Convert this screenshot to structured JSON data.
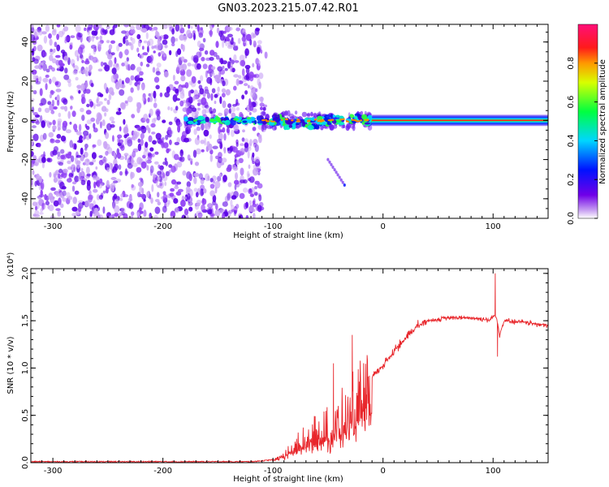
{
  "title": "GN03.2023.215.07.42.R01",
  "colors": {
    "line": "#e8262b",
    "frame": "#000000",
    "noise": "#8f3df5",
    "noise_dark": "#5a00e6"
  },
  "chart_data": [
    {
      "type": "heatmap",
      "xlabel": "Height of straight line (km)",
      "ylabel": "Frequency (Hz)",
      "xlim": [
        -320,
        150
      ],
      "ylim": [
        -50,
        49
      ],
      "x_ticks": [
        "-300",
        "-200",
        "-100",
        "0",
        "100"
      ],
      "y_ticks": [
        "-40",
        "-20",
        "0",
        "20",
        "40"
      ],
      "colorbar": {
        "label": "Normalized spectral amplitude",
        "ticks": [
          "0.0",
          "0.2",
          "0.4",
          "0.6",
          "0.8"
        ],
        "range": [
          0,
          1
        ],
        "colormap": "rainbow (violet→blue→cyan→green→yellow→red→magenta)"
      },
      "features": {
        "noise_region_x": [
          -320,
          -110
        ],
        "signal_band_freq_hz": 0,
        "signal_start_x": -180,
        "strong_constant_band_x": [
          -10,
          150
        ],
        "diagonal_trace": {
          "x": [
            -50,
            -35
          ],
          "freq_hz": [
            -20,
            -33
          ]
        }
      }
    },
    {
      "type": "line",
      "xlabel": "Height of straight line (km)",
      "ylabel": "SNR (10 * v/v)",
      "y_multiplier": "(x10⁴)",
      "xlim": [
        -320,
        150
      ],
      "ylim": [
        0,
        2.05
      ],
      "x_ticks": [
        "-300",
        "-200",
        "-100",
        "0",
        "100"
      ],
      "y_ticks": [
        "0.0",
        "0.5",
        "1.0",
        "1.5",
        "2.0"
      ],
      "series": [
        {
          "description": "SNR envelope (trend)",
          "x": [
            -320,
            -120,
            -100,
            -90,
            -75,
            -60,
            -45,
            -30,
            -15,
            0,
            15,
            30,
            40,
            60,
            80,
            90,
            97,
            100,
            103,
            106,
            110,
            130,
            150
          ],
          "y": [
            0.01,
            0.01,
            0.03,
            0.1,
            0.25,
            0.35,
            0.45,
            0.62,
            0.83,
            1.03,
            1.25,
            1.43,
            1.5,
            1.53,
            1.53,
            1.52,
            1.5,
            1.55,
            1.55,
            1.35,
            1.5,
            1.48,
            1.45
          ]
        }
      ],
      "spikes": [
        {
          "x": 102,
          "y": 2.0
        },
        {
          "x": -28,
          "y": 1.35
        },
        {
          "x": -45,
          "y": 1.05
        },
        {
          "x": 104,
          "y": 1.12
        }
      ]
    }
  ]
}
